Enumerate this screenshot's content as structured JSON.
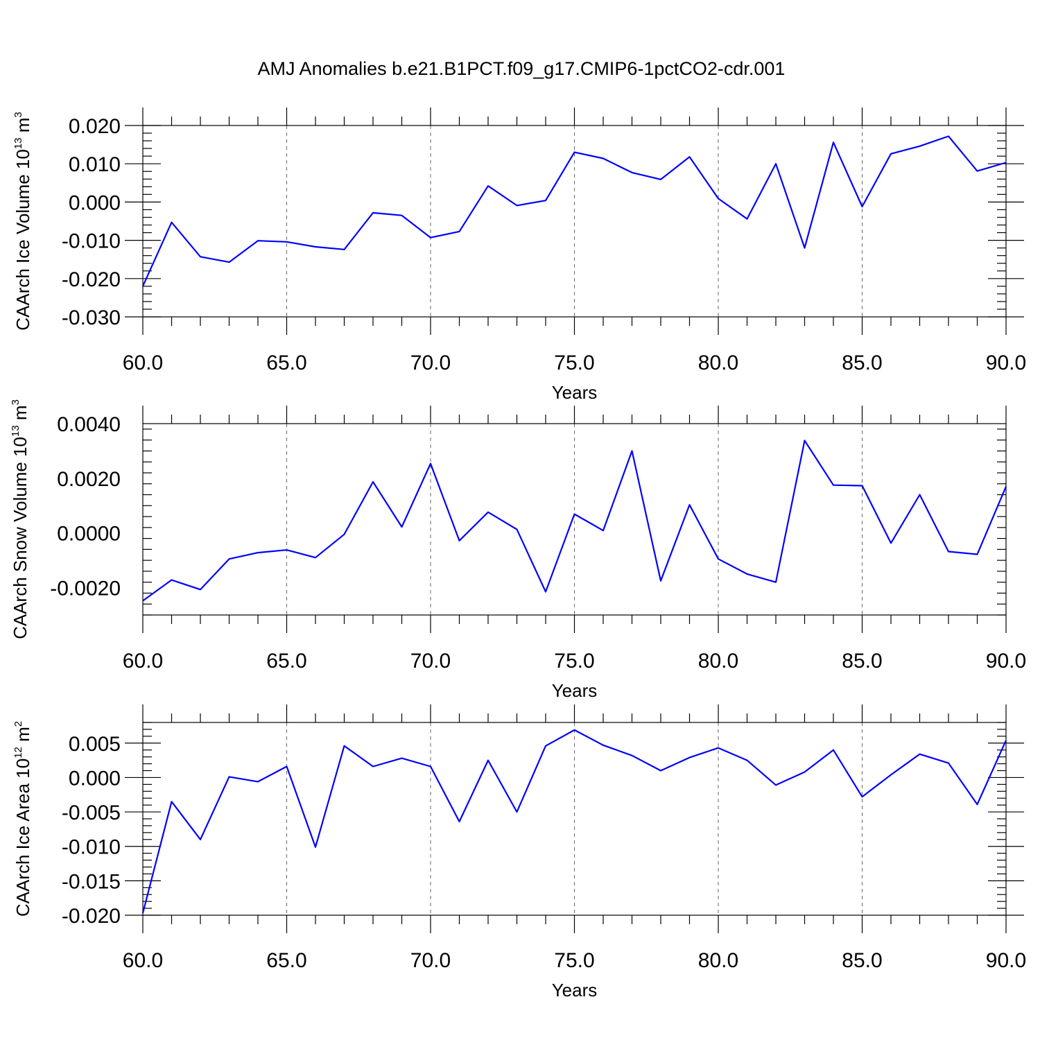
{
  "figure": {
    "title": "AMJ Anomalies b.e21.B1PCT.f09_g17.CMIP6-1pctCO2-cdr.001"
  },
  "chart_data": [
    {
      "type": "line",
      "title": "",
      "xlabel": "Years",
      "ylabel": "CAArch Ice Volume 10",
      "ylabel_exp": "13",
      "ylabel_unit": " m",
      "ylabel_unit_exp": "3",
      "xlim": [
        60,
        90
      ],
      "ylim": [
        -0.03,
        0.02
      ],
      "xticks": [
        60,
        65,
        70,
        75,
        80,
        85,
        90
      ],
      "xtick_labels": [
        "60.0",
        "65.0",
        "70.0",
        "75.0",
        "80.0",
        "85.0",
        "90.0"
      ],
      "yticks": [
        -0.03,
        -0.02,
        -0.01,
        0.0,
        0.01,
        0.02
      ],
      "ytick_labels": [
        "-0.030",
        "-0.020",
        "-0.010",
        "0.000",
        "0.010",
        "0.020"
      ],
      "grid": "vertical dashed at major x ticks",
      "color": "#0000ff",
      "x": [
        60,
        61,
        62,
        63,
        64,
        65,
        66,
        67,
        68,
        69,
        70,
        71,
        72,
        73,
        74,
        75,
        76,
        77,
        78,
        79,
        80,
        81,
        82,
        83,
        84,
        85,
        86,
        87,
        88,
        89,
        90
      ],
      "values": [
        -0.022,
        -0.0053,
        -0.0143,
        -0.0157,
        -0.0101,
        -0.0104,
        -0.0117,
        -0.0124,
        -0.0028,
        -0.0035,
        -0.0093,
        -0.0077,
        0.0042,
        -0.0009,
        0.0004,
        0.013,
        0.0114,
        0.0077,
        0.0059,
        0.0118,
        0.0009,
        -0.0044,
        0.01,
        -0.012,
        0.0156,
        -0.0012,
        0.0126,
        0.0146,
        0.0172,
        0.0081,
        0.0103
      ]
    },
    {
      "type": "line",
      "title": "",
      "xlabel": "Years",
      "ylabel": "CAArch Snow Volume 10",
      "ylabel_exp": "13",
      "ylabel_unit": " m",
      "ylabel_unit_exp": "3",
      "xlim": [
        60,
        90
      ],
      "ylim": [
        -0.003,
        0.004
      ],
      "xticks": [
        60,
        65,
        70,
        75,
        80,
        85,
        90
      ],
      "xtick_labels": [
        "60.0",
        "65.0",
        "70.0",
        "75.0",
        "80.0",
        "85.0",
        "90.0"
      ],
      "yticks": [
        -0.002,
        0.0,
        0.002,
        0.004
      ],
      "ytick_labels": [
        "-0.0020",
        "0.0000",
        "0.0020",
        "0.0040"
      ],
      "grid": "vertical dashed at major x ticks",
      "color": "#0000ff",
      "x": [
        60,
        61,
        62,
        63,
        64,
        65,
        66,
        67,
        68,
        69,
        70,
        71,
        72,
        73,
        74,
        75,
        76,
        77,
        78,
        79,
        80,
        81,
        82,
        83,
        84,
        85,
        86,
        87,
        88,
        89,
        90
      ],
      "values": [
        -0.00248,
        -0.00172,
        -0.00207,
        -0.00095,
        -0.00072,
        -0.00062,
        -0.0009,
        -5e-05,
        0.00187,
        0.00022,
        0.00254,
        -0.00028,
        0.00076,
        0.00013,
        -0.00215,
        0.00069,
        9e-05,
        0.003,
        -0.00175,
        0.00103,
        -0.00095,
        -0.0015,
        -0.0018,
        0.00338,
        0.00175,
        0.00173,
        -0.00037,
        0.0014,
        -0.00068,
        -0.00078,
        0.0017
      ]
    },
    {
      "type": "line",
      "title": "",
      "xlabel": "Years",
      "ylabel": "CAArch Ice Area 10",
      "ylabel_exp": "12",
      "ylabel_unit": " m",
      "ylabel_unit_exp": "2",
      "xlim": [
        60,
        90
      ],
      "ylim": [
        -0.02,
        0.008
      ],
      "xticks": [
        60,
        65,
        70,
        75,
        80,
        85,
        90
      ],
      "xtick_labels": [
        "60.0",
        "65.0",
        "70.0",
        "75.0",
        "80.0",
        "85.0",
        "90.0"
      ],
      "yticks": [
        -0.02,
        -0.015,
        -0.01,
        -0.005,
        0.0,
        0.005
      ],
      "ytick_labels": [
        "-0.020",
        "-0.015",
        "-0.010",
        "-0.005",
        "0.000",
        "0.005"
      ],
      "grid": "vertical dashed at major x ticks",
      "color": "#0000ff",
      "x": [
        60,
        61,
        62,
        63,
        64,
        65,
        66,
        67,
        68,
        69,
        70,
        71,
        72,
        73,
        74,
        75,
        76,
        77,
        78,
        79,
        80,
        81,
        82,
        83,
        84,
        85,
        86,
        87,
        88,
        89,
        90
      ],
      "values": [
        -0.0197,
        -0.0035,
        -0.009,
        0.0001,
        -0.0006,
        0.0016,
        -0.0101,
        0.0046,
        0.0016,
        0.0028,
        0.0016,
        -0.0064,
        0.0025,
        -0.005,
        0.0046,
        0.0069,
        0.0047,
        0.0032,
        0.001,
        0.0029,
        0.0043,
        0.0025,
        -0.0011,
        0.0008,
        0.004,
        -0.0028,
        0.0004,
        0.0034,
        0.0021,
        -0.0039,
        0.0054
      ]
    }
  ]
}
